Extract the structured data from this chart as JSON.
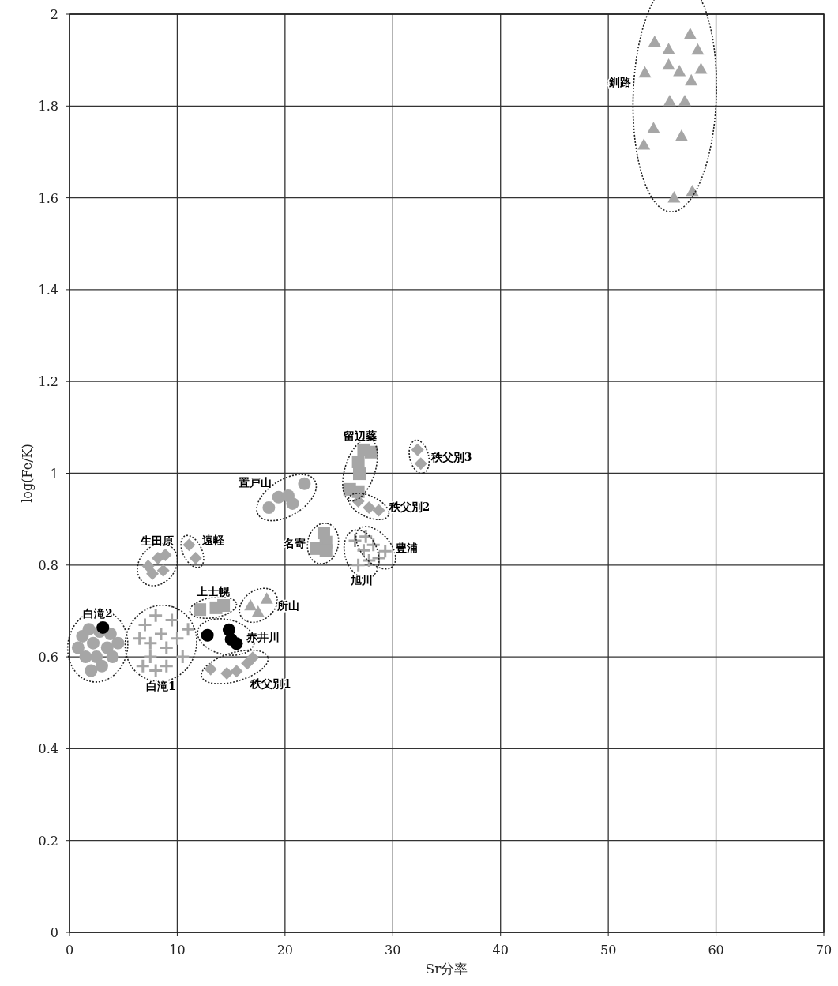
{
  "chart_data": {
    "type": "scatter",
    "xlabel": "Sr分率",
    "ylabel": "log(Fe/K)",
    "xlim": [
      0,
      70
    ],
    "ylim": [
      0,
      2
    ],
    "xticks": [
      0,
      10,
      20,
      30,
      40,
      50,
      60,
      70
    ],
    "yticks": [
      0,
      0.2,
      0.4,
      0.6,
      0.8,
      1,
      1.2,
      1.4,
      1.6,
      1.8,
      2
    ],
    "grid": true,
    "series": [
      {
        "name": "釧路",
        "color": "#a6a6a6",
        "marker": "triangle",
        "x": [
          54.3,
          53.4,
          56.6,
          58.6,
          57.7,
          56.8,
          55.7,
          54.2,
          57.6,
          55.6,
          58.3,
          55.6,
          57.1,
          53.3,
          56.1,
          57.8
        ],
        "values": [
          1.94,
          1.873,
          1.876,
          1.881,
          1.856,
          1.735,
          1.811,
          1.752,
          1.957,
          1.924,
          1.923,
          1.89,
          1.811,
          1.716,
          1.601,
          1.615
        ]
      },
      {
        "name": "置戸山",
        "color": "#a6a6a6",
        "marker": "circle",
        "x": [
          18.5,
          19.4,
          20.3,
          20.7,
          21.8
        ],
        "values": [
          0.925,
          0.948,
          0.951,
          0.934,
          0.977
        ]
      },
      {
        "name": "留辺蘂",
        "color": "#a6a6a6",
        "marker": "square",
        "x": [
          27.3,
          28.0,
          26.8,
          26.9,
          26.0,
          26.8
        ],
        "values": [
          1.051,
          1.046,
          1.025,
          0.999,
          0.965,
          0.96
        ]
      },
      {
        "name": "秩父別3",
        "color": "#a6a6a6",
        "marker": "diamond",
        "x": [
          32.3,
          32.6
        ],
        "values": [
          1.051,
          1.021
        ]
      },
      {
        "name": "秩父別2",
        "color": "#a6a6a6",
        "marker": "diamond",
        "x": [
          26.8,
          27.8,
          28.7
        ],
        "values": [
          0.939,
          0.925,
          0.919
        ]
      },
      {
        "name": "名寄",
        "color": "#a6a6a6",
        "marker": "square",
        "x": [
          23.6,
          23.8,
          22.9,
          23.8
        ],
        "values": [
          0.87,
          0.85,
          0.836,
          0.832
        ]
      },
      {
        "name": "旭川",
        "color": "#a6a6a6",
        "marker": "cross",
        "x": [
          26.5,
          27.3,
          27.8,
          26.8
        ],
        "values": [
          0.853,
          0.832,
          0.81,
          0.8
        ]
      },
      {
        "name": "豊浦",
        "color": "#a6a6a6",
        "marker": "cross",
        "x": [
          27.5,
          28.2,
          28.7,
          29.3
        ],
        "values": [
          0.862,
          0.844,
          0.815,
          0.83
        ]
      },
      {
        "name": "生田原",
        "color": "#a6a6a6",
        "marker": "diamond",
        "x": [
          7.3,
          8.2,
          8.9,
          7.7,
          8.7
        ],
        "values": [
          0.798,
          0.815,
          0.822,
          0.781,
          0.788
        ]
      },
      {
        "name": "遠軽",
        "color": "#a6a6a6",
        "marker": "diamond",
        "x": [
          11.1,
          11.7
        ],
        "values": [
          0.844,
          0.815
        ]
      },
      {
        "name": "上士幌",
        "color": "#a6a6a6",
        "marker": "square",
        "x": [
          12.1,
          13.6,
          14.3
        ],
        "values": [
          0.703,
          0.707,
          0.712
        ]
      },
      {
        "name": "所山",
        "color": "#a6a6a6",
        "marker": "triangle",
        "x": [
          16.8,
          18.3,
          17.5
        ],
        "values": [
          0.712,
          0.727,
          0.698
        ]
      },
      {
        "name": "赤井川",
        "color": "#000000",
        "marker": "circle",
        "x": [
          12.8,
          14.8,
          15.0,
          15.5
        ],
        "values": [
          0.647,
          0.659,
          0.638,
          0.629
        ]
      },
      {
        "name": "秩父別1",
        "color": "#a6a6a6",
        "marker": "diamond",
        "x": [
          13.1,
          14.6,
          15.5,
          16.5,
          17.0
        ],
        "values": [
          0.573,
          0.564,
          0.569,
          0.586,
          0.598
        ]
      },
      {
        "name": "白滝2",
        "marker": "circle",
        "x": [
          0.8,
          1.5,
          1.2,
          2.2,
          2.5,
          3.0,
          2.0,
          3.5,
          4.0,
          1.8,
          3.8,
          4.5,
          2.8,
          3.1
        ],
        "values": [
          0.62,
          0.6,
          0.645,
          0.63,
          0.6,
          0.58,
          0.57,
          0.62,
          0.6,
          0.66,
          0.65,
          0.63,
          0.655,
          0.664
        ],
        "colors": [
          "#a6a6a6",
          "#a6a6a6",
          "#a6a6a6",
          "#a6a6a6",
          "#a6a6a6",
          "#a6a6a6",
          "#a6a6a6",
          "#a6a6a6",
          "#a6a6a6",
          "#a6a6a6",
          "#a6a6a6",
          "#a6a6a6",
          "#a6a6a6",
          "#000000"
        ]
      },
      {
        "name": "白滝1",
        "color": "#a6a6a6",
        "marker": "cross",
        "x": [
          6.5,
          7.0,
          7.5,
          8.0,
          8.5,
          9.0,
          9.5,
          10.0,
          10.5,
          8.0,
          9.0,
          11.0,
          7.5,
          6.8
        ],
        "values": [
          0.64,
          0.67,
          0.6,
          0.69,
          0.65,
          0.62,
          0.68,
          0.64,
          0.6,
          0.57,
          0.58,
          0.66,
          0.63,
          0.58
        ]
      }
    ]
  }
}
